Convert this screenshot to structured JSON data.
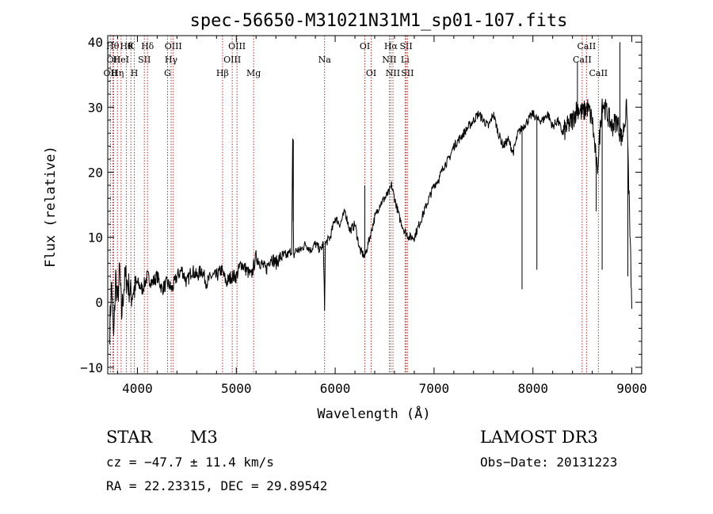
{
  "chart_data": {
    "type": "line",
    "title": "spec-56650-M31021N31M1_sp01-107.fits",
    "xlabel": "Wavelength (Å)",
    "ylabel": "Flux (relative)",
    "xlim": [
      3700,
      9100
    ],
    "ylim": [
      -11,
      41
    ],
    "xticks": [
      4000,
      5000,
      6000,
      7000,
      8000,
      9000
    ],
    "yticks": [
      -10,
      0,
      10,
      20,
      30,
      40
    ],
    "grid": false,
    "series": [
      {
        "name": "flux",
        "x": [
          3720,
          3740,
          3760,
          3780,
          3800,
          3820,
          3840,
          3860,
          3880,
          3900,
          3920,
          3940,
          3960,
          3980,
          4000,
          4050,
          4100,
          4150,
          4200,
          4250,
          4300,
          4350,
          4400,
          4450,
          4500,
          4550,
          4600,
          4650,
          4700,
          4750,
          4800,
          4850,
          4900,
          4950,
          5000,
          5050,
          5100,
          5150,
          5200,
          5250,
          5300,
          5350,
          5400,
          5450,
          5500,
          5560,
          5570,
          5580,
          5600,
          5650,
          5700,
          5750,
          5800,
          5850,
          5880,
          5893,
          5900,
          5950,
          6000,
          6050,
          6100,
          6150,
          6200,
          6250,
          6300,
          6350,
          6400,
          6450,
          6500,
          6550,
          6570,
          6600,
          6650,
          6700,
          6750,
          6800,
          6850,
          6900,
          6950,
          7000,
          7050,
          7100,
          7150,
          7200,
          7250,
          7300,
          7350,
          7400,
          7450,
          7500,
          7550,
          7600,
          7650,
          7700,
          7750,
          7800,
          7850,
          7900,
          7950,
          8000,
          8050,
          8100,
          8150,
          8200,
          8250,
          8300,
          8350,
          8400,
          8450,
          8500,
          8550,
          8600,
          8650,
          8700,
          8750,
          8800,
          8850,
          8900,
          8950,
          9000
        ],
        "y": [
          -4,
          3,
          -6,
          4,
          0,
          5,
          -2,
          2,
          4,
          3,
          2,
          1,
          2,
          2,
          3,
          2,
          4,
          3,
          4,
          2,
          3,
          2,
          4,
          5,
          3,
          5,
          4,
          5,
          3,
          4,
          4,
          5,
          3,
          4,
          4,
          6,
          5,
          4,
          7,
          6,
          5,
          7,
          6,
          7,
          7,
          8,
          25,
          7,
          8,
          8,
          9,
          8,
          9,
          8,
          9,
          -1,
          9,
          10,
          13,
          12,
          14,
          11,
          12,
          8,
          7,
          10,
          13,
          15,
          16,
          17,
          18,
          16,
          13,
          11,
          10,
          10,
          12,
          14,
          16,
          18,
          19,
          21,
          22,
          24,
          25,
          26,
          27,
          28,
          29,
          28,
          27,
          29,
          26,
          24,
          25,
          23,
          26,
          27,
          28,
          29,
          28,
          28,
          29,
          27,
          28,
          26,
          27,
          28,
          30,
          29,
          30,
          28,
          20,
          31,
          29,
          27,
          28,
          25,
          30,
          -1
        ],
        "spikes": [
          {
            "x": 5577,
            "y": 25
          },
          {
            "x": 5893,
            "y": -1
          },
          {
            "x": 6300,
            "y": 18
          },
          {
            "x": 7890,
            "y": 2
          },
          {
            "x": 8040,
            "y": 5
          },
          {
            "x": 8450,
            "y": 37
          },
          {
            "x": 8640,
            "y": 14
          },
          {
            "x": 8700,
            "y": 5
          },
          {
            "x": 8880,
            "y": 40
          },
          {
            "x": 8960,
            "y": 4
          }
        ]
      }
    ],
    "lines": [
      {
        "wave": 3727,
        "label": "OII",
        "row": 2
      },
      {
        "wave": 3750,
        "label": "Hθ",
        "row": 0
      },
      {
        "wave": 3760,
        "label": "OII",
        "row": 1
      },
      {
        "wave": 3798,
        "label": "Hη",
        "row": 2
      },
      {
        "wave": 3835,
        "label": "HeI",
        "row": 1
      },
      {
        "wave": 3889,
        "label": "Hθ",
        "row": 0
      },
      {
        "wave": 3934,
        "label": "K",
        "row": 0
      },
      {
        "wave": 3969,
        "label": "H",
        "row": 2
      },
      {
        "wave": 4070,
        "label": "SII",
        "row": 1
      },
      {
        "wave": 4102,
        "label": "Hδ",
        "row": 0
      },
      {
        "wave": 4305,
        "label": "G",
        "row": 2
      },
      {
        "wave": 4341,
        "label": "Hγ",
        "row": 1
      },
      {
        "wave": 4363,
        "label": "OIII",
        "row": 0
      },
      {
        "wave": 4861,
        "label": "Hβ",
        "row": 2
      },
      {
        "wave": 4959,
        "label": "OIII",
        "row": 1
      },
      {
        "wave": 5007,
        "label": "OIII",
        "row": 0
      },
      {
        "wave": 5175,
        "label": "Mg",
        "row": 2
      },
      {
        "wave": 5893,
        "label": "Na",
        "row": 1
      },
      {
        "wave": 6300,
        "label": "OI",
        "row": 0
      },
      {
        "wave": 6364,
        "label": "OI",
        "row": 2
      },
      {
        "wave": 6548,
        "label": "NII",
        "row": 1
      },
      {
        "wave": 6563,
        "label": "Hα",
        "row": 0
      },
      {
        "wave": 6584,
        "label": "NII",
        "row": 2
      },
      {
        "wave": 6707,
        "label": "Li",
        "row": 1
      },
      {
        "wave": 6717,
        "label": "SII",
        "row": 0
      },
      {
        "wave": 6731,
        "label": "SII",
        "row": 2
      },
      {
        "wave": 8498,
        "label": "CaII",
        "row": 1
      },
      {
        "wave": 8542,
        "label": "CaII",
        "row": 0
      },
      {
        "wave": 8662,
        "label": "CaII",
        "row": 2
      }
    ]
  },
  "info": {
    "object_type": "STAR",
    "subclass": "M3",
    "survey": "LAMOST DR3",
    "redshift": "cz = −47.7 ± 11.4 km/s",
    "obs_date": "Obs−Date: 20131223",
    "coords": "RA =  22.23315, DEC =  29.89542"
  }
}
